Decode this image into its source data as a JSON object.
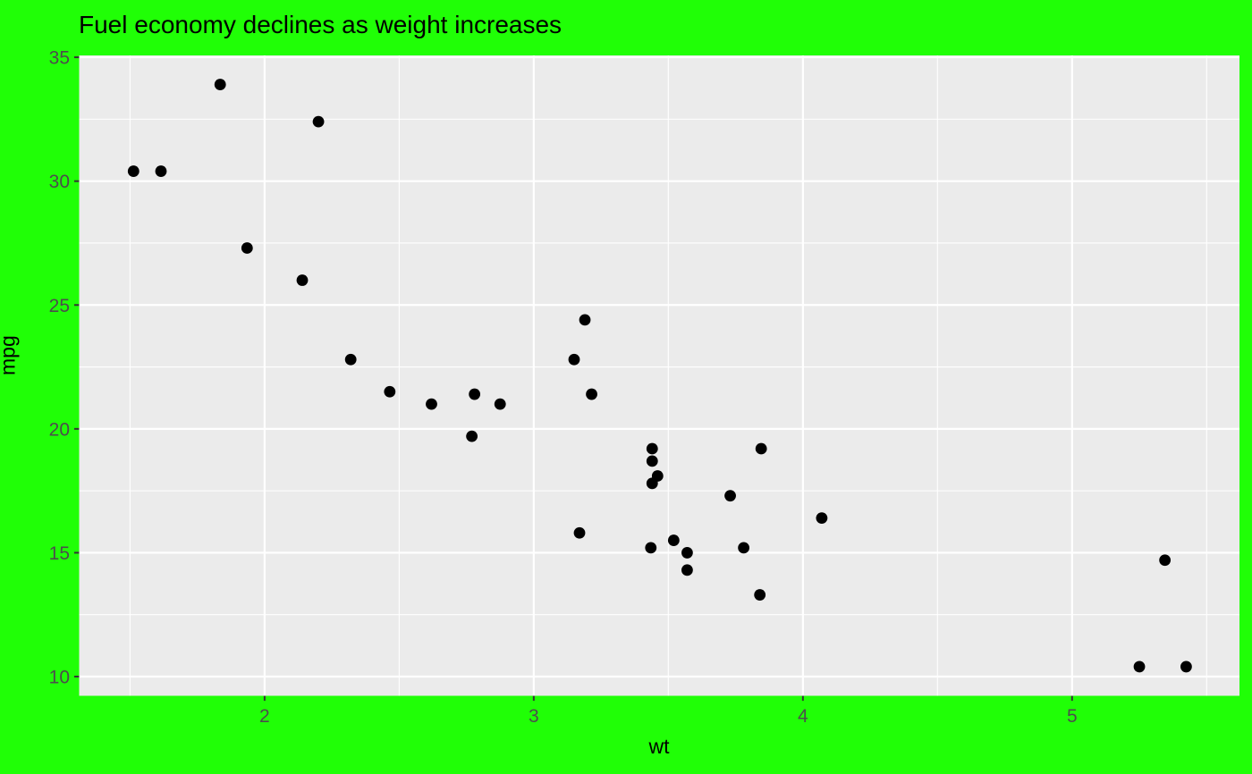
{
  "chart_data": {
    "type": "scatter",
    "title": "Fuel economy declines as weight increases",
    "xlabel": "wt",
    "ylabel": "mpg",
    "xlim": [
      1.311,
      5.622
    ],
    "ylim": [
      9.225,
      35.075
    ],
    "x_major_ticks": [
      2,
      3,
      4,
      5
    ],
    "x_minor_ticks": [
      1.5,
      2.5,
      3.5,
      4.5,
      5.5
    ],
    "y_major_ticks": [
      10,
      15,
      20,
      25,
      30,
      35
    ],
    "y_minor_ticks": [
      12.5,
      17.5,
      22.5,
      27.5,
      32.5
    ],
    "grid": "major-and-minor-white-on-grey-panel",
    "legend": "none",
    "points": [
      [
        2.62,
        21.0
      ],
      [
        2.875,
        21.0
      ],
      [
        2.32,
        22.8
      ],
      [
        3.215,
        21.4
      ],
      [
        3.44,
        18.7
      ],
      [
        3.46,
        18.1
      ],
      [
        3.57,
        14.3
      ],
      [
        3.19,
        24.4
      ],
      [
        3.15,
        22.8
      ],
      [
        3.44,
        19.2
      ],
      [
        3.44,
        17.8
      ],
      [
        4.07,
        16.4
      ],
      [
        3.73,
        17.3
      ],
      [
        3.78,
        15.2
      ],
      [
        5.25,
        10.4
      ],
      [
        5.424,
        10.4
      ],
      [
        5.345,
        14.7
      ],
      [
        2.2,
        32.4
      ],
      [
        1.615,
        30.4
      ],
      [
        1.835,
        33.9
      ],
      [
        2.465,
        21.5
      ],
      [
        3.52,
        15.5
      ],
      [
        3.435,
        15.2
      ],
      [
        3.84,
        13.3
      ],
      [
        3.845,
        19.2
      ],
      [
        1.935,
        27.3
      ],
      [
        2.14,
        26.0
      ],
      [
        1.513,
        30.4
      ],
      [
        3.17,
        15.8
      ],
      [
        2.77,
        19.7
      ],
      [
        3.57,
        15.0
      ],
      [
        2.78,
        21.4
      ]
    ]
  },
  "colors": {
    "plot_background": "#20FF06",
    "panel_background": "#EBEBEB",
    "gridline": "#FFFFFF",
    "point": "#000000",
    "tick_mark": "#333333",
    "tick_label": "#4D4D4D",
    "title_text": "#000000",
    "axis_title_text": "#000000"
  }
}
